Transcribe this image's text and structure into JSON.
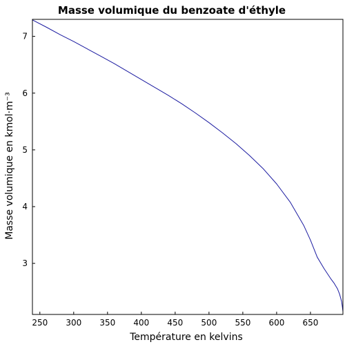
{
  "chart_data": {
    "type": "line",
    "title": "Masse volumique du benzoate d'éthyle",
    "xlabel": "Température en kelvins",
    "ylabel": "Masse volumique en kmol·m⁻³",
    "xlim": [
      239,
      698
    ],
    "ylim": [
      2.1,
      7.3
    ],
    "xticks": [
      250,
      300,
      350,
      400,
      450,
      500,
      550,
      600,
      650
    ],
    "yticks": [
      3,
      4,
      5,
      6,
      7
    ],
    "grid": false,
    "series_color": "#1a1aa0",
    "frame_color": "#000000",
    "series": [
      {
        "x": [
          239,
          260,
          280,
          300,
          320,
          340,
          360,
          380,
          400,
          420,
          440,
          460,
          480,
          500,
          520,
          540,
          560,
          580,
          600,
          620,
          640,
          650,
          660,
          670,
          680,
          685,
          690,
          693,
          696,
          697,
          698
        ],
        "y": [
          7.29,
          7.16,
          7.03,
          6.91,
          6.78,
          6.65,
          6.52,
          6.38,
          6.24,
          6.1,
          5.96,
          5.81,
          5.65,
          5.48,
          5.3,
          5.11,
          4.9,
          4.67,
          4.4,
          4.08,
          3.67,
          3.41,
          3.11,
          2.91,
          2.73,
          2.65,
          2.55,
          2.46,
          2.33,
          2.25,
          2.15
        ]
      }
    ]
  }
}
